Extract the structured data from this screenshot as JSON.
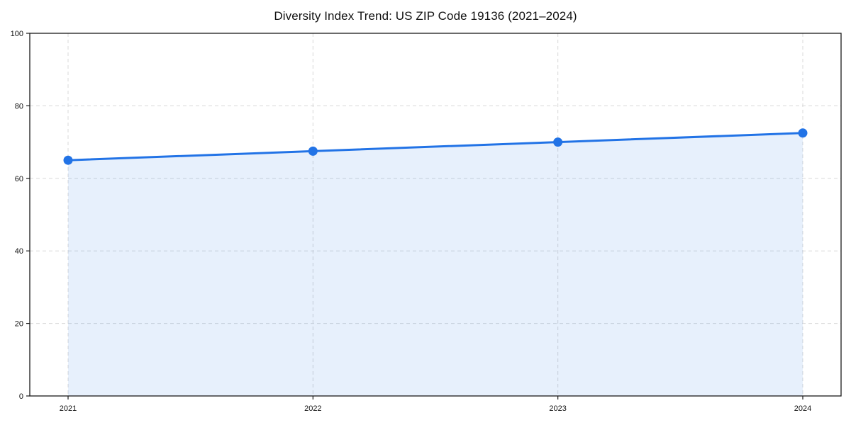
{
  "chart": {
    "title": "Diversity Index Trend: US ZIP Code 19136 (2021–2024)"
  },
  "chart_data": {
    "type": "line",
    "title": "Diversity Index Trend: US ZIP Code 19136 (2021–2024)",
    "categories": [
      "2021",
      "2022",
      "2023",
      "2024"
    ],
    "series": [
      {
        "name": "Diversity Index",
        "values": [
          65,
          67.5,
          70,
          72.5
        ]
      }
    ],
    "xlabel": "",
    "ylabel": "",
    "ylim": [
      0,
      100
    ],
    "y_ticks": [
      0,
      20,
      40,
      60,
      80,
      100
    ],
    "grid": true,
    "grid_style": "dashed",
    "legend_position": "none",
    "area_fill": true,
    "marker": "circle",
    "marker_size": 6.5,
    "line_width": 3,
    "colors": {
      "line": "#2273e6",
      "marker": "#2273e6",
      "area": "rgba(34, 115, 230, 0.11)",
      "grid": "#d8d8d8",
      "axis": "#1a1a1a",
      "text": "#111111",
      "background": "#ffffff"
    }
  }
}
